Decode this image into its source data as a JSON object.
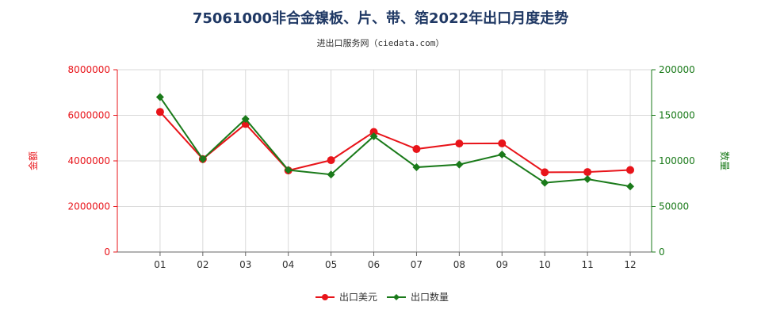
{
  "chart_data": {
    "type": "line",
    "title": "75061000非合金镍板、片、带、箔2022年出口月度走势",
    "subtitle": "进出口服务网（ciedata.com）",
    "x": [
      "01",
      "02",
      "03",
      "04",
      "05",
      "06",
      "07",
      "08",
      "09",
      "10",
      "11",
      "12"
    ],
    "y_left": {
      "label": "金额",
      "ylim": [
        0,
        8000000
      ],
      "ticks": [
        "0",
        "2000000",
        "4000000",
        "6000000",
        "8000000"
      ],
      "color": "#e8141a"
    },
    "y_right": {
      "label": "数量",
      "ylim": [
        0,
        200000
      ],
      "ticks": [
        "0",
        "50000",
        "100000",
        "150000",
        "200000"
      ],
      "color": "#1a7a1a"
    },
    "series": [
      {
        "name": "出口美元",
        "axis": "left",
        "color": "#e8141a",
        "values": [
          6150000,
          4080000,
          5620000,
          3580000,
          4030000,
          5270000,
          4520000,
          4760000,
          4770000,
          3500000,
          3510000,
          3600000
        ]
      },
      {
        "name": "出口数量",
        "axis": "right",
        "color": "#1a7a1a",
        "values": [
          170000,
          102000,
          146000,
          90000,
          85000,
          127000,
          93000,
          96000,
          107000,
          76000,
          80000,
          72000
        ]
      }
    ],
    "grid": true,
    "legend_position": "bottom-center"
  }
}
